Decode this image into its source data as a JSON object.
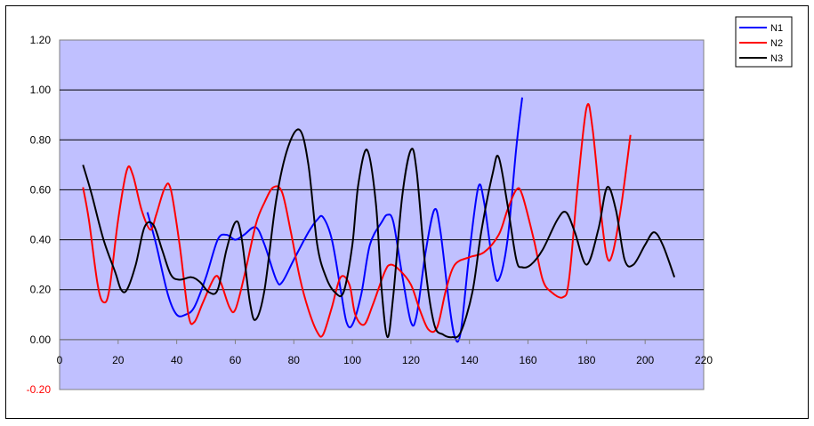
{
  "chart_data": {
    "type": "line",
    "title": "",
    "xlabel": "",
    "ylabel": "",
    "xlim": [
      0,
      220
    ],
    "ylim": [
      -0.2,
      1.2
    ],
    "xticks": [
      "0",
      "20",
      "40",
      "60",
      "80",
      "100",
      "120",
      "140",
      "160",
      "180",
      "200",
      "220"
    ],
    "yticks": [
      "-0.20",
      "0.00",
      "0.20",
      "0.40",
      "0.60",
      "0.80",
      "1.00",
      "1.20"
    ],
    "grid": "horizontal",
    "plot_background": "#c0c0ff",
    "legend": "top-right",
    "series": [
      {
        "name": "N1",
        "color": "#0000ff",
        "points": [
          [
            30,
            0.51
          ],
          [
            33,
            0.38
          ],
          [
            37,
            0.18
          ],
          [
            40,
            0.1
          ],
          [
            43,
            0.1
          ],
          [
            46,
            0.13
          ],
          [
            50,
            0.25
          ],
          [
            54,
            0.4
          ],
          [
            57,
            0.42
          ],
          [
            60,
            0.4
          ],
          [
            63,
            0.42
          ],
          [
            67,
            0.45
          ],
          [
            70,
            0.38
          ],
          [
            74,
            0.24
          ],
          [
            76,
            0.23
          ],
          [
            80,
            0.32
          ],
          [
            85,
            0.43
          ],
          [
            88,
            0.48
          ],
          [
            90,
            0.49
          ],
          [
            93,
            0.4
          ],
          [
            96,
            0.2
          ],
          [
            98,
            0.07
          ],
          [
            100,
            0.06
          ],
          [
            103,
            0.18
          ],
          [
            106,
            0.38
          ],
          [
            110,
            0.47
          ],
          [
            112,
            0.5
          ],
          [
            114,
            0.47
          ],
          [
            117,
            0.26
          ],
          [
            120,
            0.07
          ],
          [
            122,
            0.1
          ],
          [
            125,
            0.35
          ],
          [
            128,
            0.52
          ],
          [
            130,
            0.44
          ],
          [
            133,
            0.15
          ],
          [
            135,
            0.01
          ],
          [
            137,
            0.03
          ],
          [
            140,
            0.35
          ],
          [
            143,
            0.61
          ],
          [
            145,
            0.55
          ],
          [
            148,
            0.3
          ],
          [
            150,
            0.24
          ],
          [
            153,
            0.4
          ],
          [
            156,
            0.77
          ],
          [
            158,
            0.97
          ]
        ]
      },
      {
        "name": "N2",
        "color": "#ff0000",
        "points": [
          [
            8,
            0.61
          ],
          [
            10,
            0.48
          ],
          [
            13,
            0.22
          ],
          [
            15,
            0.15
          ],
          [
            17,
            0.2
          ],
          [
            20,
            0.48
          ],
          [
            23,
            0.68
          ],
          [
            25,
            0.66
          ],
          [
            28,
            0.52
          ],
          [
            31,
            0.44
          ],
          [
            33,
            0.5
          ],
          [
            36,
            0.61
          ],
          [
            38,
            0.6
          ],
          [
            41,
            0.38
          ],
          [
            44,
            0.1
          ],
          [
            46,
            0.07
          ],
          [
            49,
            0.15
          ],
          [
            53,
            0.25
          ],
          [
            55,
            0.23
          ],
          [
            58,
            0.13
          ],
          [
            60,
            0.12
          ],
          [
            63,
            0.25
          ],
          [
            67,
            0.46
          ],
          [
            70,
            0.55
          ],
          [
            73,
            0.61
          ],
          [
            76,
            0.59
          ],
          [
            79,
            0.43
          ],
          [
            82,
            0.25
          ],
          [
            85,
            0.12
          ],
          [
            88,
            0.03
          ],
          [
            90,
            0.02
          ],
          [
            93,
            0.13
          ],
          [
            96,
            0.25
          ],
          [
            99,
            0.22
          ],
          [
            101,
            0.1
          ],
          [
            104,
            0.06
          ],
          [
            107,
            0.14
          ],
          [
            111,
            0.27
          ],
          [
            113,
            0.3
          ],
          [
            116,
            0.28
          ],
          [
            120,
            0.22
          ],
          [
            123,
            0.12
          ],
          [
            126,
            0.04
          ],
          [
            129,
            0.05
          ],
          [
            132,
            0.2
          ],
          [
            135,
            0.3
          ],
          [
            140,
            0.33
          ],
          [
            145,
            0.35
          ],
          [
            150,
            0.42
          ],
          [
            153,
            0.52
          ],
          [
            156,
            0.6
          ],
          [
            158,
            0.58
          ],
          [
            162,
            0.4
          ],
          [
            165,
            0.24
          ],
          [
            168,
            0.19
          ],
          [
            172,
            0.17
          ],
          [
            174,
            0.24
          ],
          [
            177,
            0.62
          ],
          [
            180,
            0.93
          ],
          [
            182,
            0.85
          ],
          [
            185,
            0.5
          ],
          [
            187,
            0.33
          ],
          [
            189,
            0.35
          ],
          [
            192,
            0.55
          ],
          [
            195,
            0.82
          ]
        ]
      },
      {
        "name": "N3",
        "color": "#000000",
        "points": [
          [
            8,
            0.7
          ],
          [
            11,
            0.58
          ],
          [
            15,
            0.4
          ],
          [
            19,
            0.27
          ],
          [
            21,
            0.2
          ],
          [
            23,
            0.2
          ],
          [
            26,
            0.3
          ],
          [
            29,
            0.45
          ],
          [
            32,
            0.46
          ],
          [
            35,
            0.36
          ],
          [
            38,
            0.26
          ],
          [
            41,
            0.24
          ],
          [
            45,
            0.25
          ],
          [
            48,
            0.23
          ],
          [
            51,
            0.19
          ],
          [
            54,
            0.2
          ],
          [
            57,
            0.36
          ],
          [
            60,
            0.47
          ],
          [
            62,
            0.42
          ],
          [
            65,
            0.15
          ],
          [
            67,
            0.08
          ],
          [
            70,
            0.2
          ],
          [
            74,
            0.56
          ],
          [
            78,
            0.77
          ],
          [
            82,
            0.84
          ],
          [
            85,
            0.7
          ],
          [
            88,
            0.38
          ],
          [
            91,
            0.25
          ],
          [
            94,
            0.19
          ],
          [
            97,
            0.19
          ],
          [
            100,
            0.38
          ],
          [
            102,
            0.62
          ],
          [
            105,
            0.76
          ],
          [
            108,
            0.55
          ],
          [
            110,
            0.2
          ],
          [
            112,
            0.01
          ],
          [
            114,
            0.18
          ],
          [
            117,
            0.57
          ],
          [
            120,
            0.76
          ],
          [
            122,
            0.67
          ],
          [
            125,
            0.28
          ],
          [
            128,
            0.06
          ],
          [
            131,
            0.02
          ],
          [
            134,
            0.01
          ],
          [
            137,
            0.03
          ],
          [
            141,
            0.19
          ],
          [
            144,
            0.43
          ],
          [
            148,
            0.67
          ],
          [
            150,
            0.73
          ],
          [
            153,
            0.54
          ],
          [
            156,
            0.32
          ],
          [
            158,
            0.29
          ],
          [
            161,
            0.3
          ],
          [
            165,
            0.36
          ],
          [
            170,
            0.48
          ],
          [
            173,
            0.51
          ],
          [
            176,
            0.43
          ],
          [
            180,
            0.3
          ],
          [
            184,
            0.44
          ],
          [
            187,
            0.61
          ],
          [
            190,
            0.52
          ],
          [
            193,
            0.32
          ],
          [
            196,
            0.3
          ],
          [
            200,
            0.38
          ],
          [
            203,
            0.43
          ],
          [
            206,
            0.38
          ],
          [
            210,
            0.25
          ]
        ]
      }
    ]
  }
}
